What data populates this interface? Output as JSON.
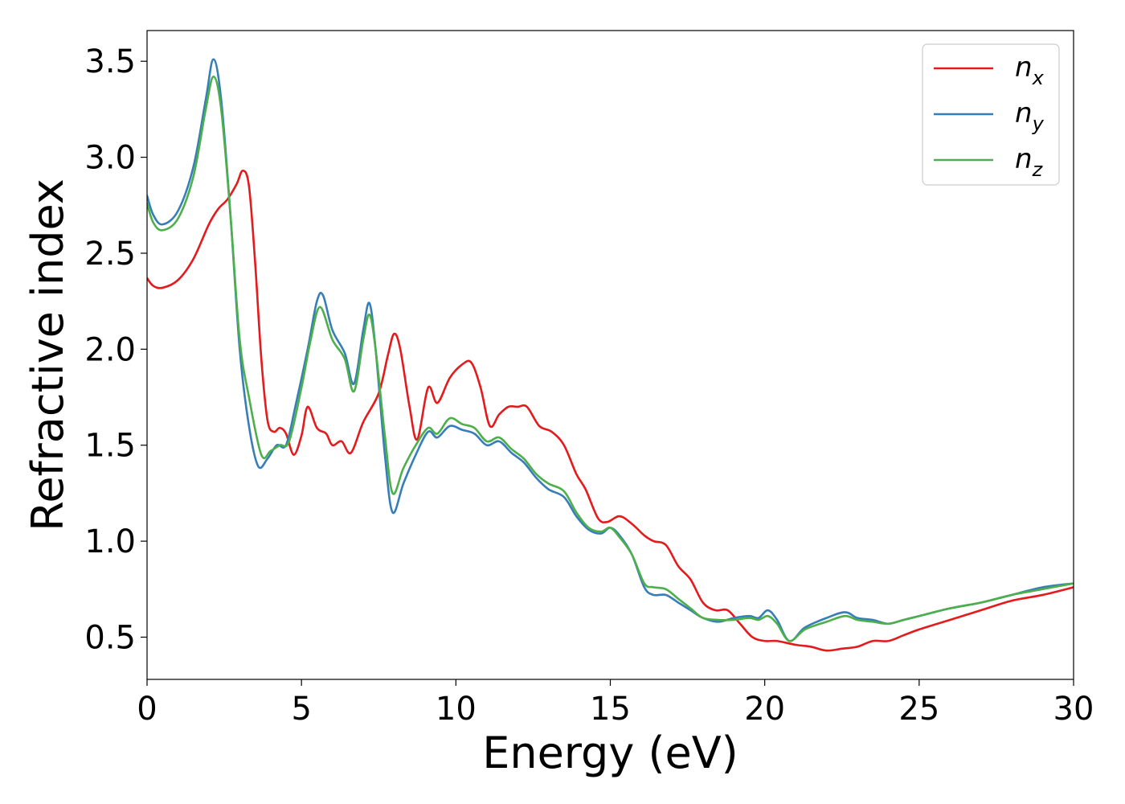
{
  "chart_data": {
    "type": "line",
    "xlabel": "Energy (eV)",
    "ylabel": "Refractive index",
    "xlim": [
      0,
      30
    ],
    "ylim": [
      0.28,
      3.66
    ],
    "xticks": [
      0,
      5,
      10,
      15,
      20,
      25,
      30
    ],
    "yticks": [
      0.5,
      1.0,
      1.5,
      2.0,
      2.5,
      3.0,
      3.5
    ],
    "xtick_labels": [
      "0",
      "5",
      "10",
      "15",
      "20",
      "25",
      "30"
    ],
    "ytick_labels": [
      "0.5",
      "1.0",
      "1.5",
      "2.0",
      "2.5",
      "3.0",
      "3.5"
    ],
    "grid": false,
    "legend_position": "top-right",
    "series": [
      {
        "name": "n_x",
        "legend_base": "n",
        "legend_sub": "x",
        "color": "#e41a1c",
        "points": [
          [
            0,
            2.37
          ],
          [
            0.2,
            2.33
          ],
          [
            0.5,
            2.32
          ],
          [
            1.0,
            2.36
          ],
          [
            1.5,
            2.47
          ],
          [
            2.0,
            2.65
          ],
          [
            2.3,
            2.73
          ],
          [
            2.6,
            2.78
          ],
          [
            2.9,
            2.86
          ],
          [
            3.1,
            2.93
          ],
          [
            3.3,
            2.85
          ],
          [
            3.5,
            2.45
          ],
          [
            3.7,
            1.95
          ],
          [
            3.9,
            1.63
          ],
          [
            4.1,
            1.57
          ],
          [
            4.3,
            1.59
          ],
          [
            4.5,
            1.56
          ],
          [
            4.75,
            1.45
          ],
          [
            5.0,
            1.55
          ],
          [
            5.2,
            1.7
          ],
          [
            5.5,
            1.59
          ],
          [
            5.8,
            1.56
          ],
          [
            6.0,
            1.5
          ],
          [
            6.3,
            1.52
          ],
          [
            6.6,
            1.46
          ],
          [
            7.0,
            1.62
          ],
          [
            7.5,
            1.77
          ],
          [
            7.8,
            1.97
          ],
          [
            8.0,
            2.08
          ],
          [
            8.2,
            2.0
          ],
          [
            8.5,
            1.7
          ],
          [
            8.75,
            1.53
          ],
          [
            9.1,
            1.8
          ],
          [
            9.4,
            1.72
          ],
          [
            9.8,
            1.85
          ],
          [
            10.2,
            1.92
          ],
          [
            10.5,
            1.93
          ],
          [
            10.8,
            1.8
          ],
          [
            11.1,
            1.6
          ],
          [
            11.4,
            1.66
          ],
          [
            11.7,
            1.7
          ],
          [
            12.0,
            1.7
          ],
          [
            12.3,
            1.7
          ],
          [
            12.7,
            1.6
          ],
          [
            13.1,
            1.57
          ],
          [
            13.5,
            1.5
          ],
          [
            13.9,
            1.35
          ],
          [
            14.2,
            1.27
          ],
          [
            14.6,
            1.12
          ],
          [
            14.9,
            1.1
          ],
          [
            15.3,
            1.13
          ],
          [
            15.7,
            1.09
          ],
          [
            16.1,
            1.03
          ],
          [
            16.4,
            1.0
          ],
          [
            16.8,
            0.98
          ],
          [
            17.2,
            0.87
          ],
          [
            17.6,
            0.8
          ],
          [
            18.0,
            0.68
          ],
          [
            18.4,
            0.64
          ],
          [
            18.8,
            0.64
          ],
          [
            19.2,
            0.57
          ],
          [
            19.6,
            0.5
          ],
          [
            20.0,
            0.48
          ],
          [
            20.4,
            0.48
          ],
          [
            21.0,
            0.46
          ],
          [
            21.5,
            0.45
          ],
          [
            22.0,
            0.43
          ],
          [
            22.5,
            0.44
          ],
          [
            23.0,
            0.45
          ],
          [
            23.5,
            0.48
          ],
          [
            24.0,
            0.48
          ],
          [
            24.5,
            0.51
          ],
          [
            25.0,
            0.54
          ],
          [
            26.0,
            0.59
          ],
          [
            27.0,
            0.64
          ],
          [
            28.0,
            0.69
          ],
          [
            29.0,
            0.72
          ],
          [
            30.0,
            0.76
          ]
        ]
      },
      {
        "name": "n_y",
        "legend_base": "n",
        "legend_sub": "y",
        "color": "#377eb8",
        "points": [
          [
            0,
            2.8
          ],
          [
            0.2,
            2.7
          ],
          [
            0.5,
            2.65
          ],
          [
            1.0,
            2.72
          ],
          [
            1.5,
            2.95
          ],
          [
            1.9,
            3.3
          ],
          [
            2.15,
            3.51
          ],
          [
            2.4,
            3.3
          ],
          [
            2.7,
            2.7
          ],
          [
            3.0,
            2.0
          ],
          [
            3.3,
            1.6
          ],
          [
            3.6,
            1.39
          ],
          [
            3.9,
            1.43
          ],
          [
            4.2,
            1.5
          ],
          [
            4.5,
            1.5
          ],
          [
            4.8,
            1.7
          ],
          [
            5.2,
            2.0
          ],
          [
            5.5,
            2.25
          ],
          [
            5.7,
            2.28
          ],
          [
            6.0,
            2.1
          ],
          [
            6.4,
            1.98
          ],
          [
            6.7,
            1.82
          ],
          [
            7.0,
            2.1
          ],
          [
            7.2,
            2.24
          ],
          [
            7.4,
            2.0
          ],
          [
            7.7,
            1.45
          ],
          [
            7.95,
            1.15
          ],
          [
            8.3,
            1.3
          ],
          [
            8.7,
            1.45
          ],
          [
            9.1,
            1.57
          ],
          [
            9.4,
            1.54
          ],
          [
            9.8,
            1.6
          ],
          [
            10.2,
            1.58
          ],
          [
            10.6,
            1.56
          ],
          [
            11.0,
            1.5
          ],
          [
            11.4,
            1.52
          ],
          [
            11.8,
            1.46
          ],
          [
            12.2,
            1.41
          ],
          [
            12.6,
            1.33
          ],
          [
            13.0,
            1.27
          ],
          [
            13.5,
            1.23
          ],
          [
            13.9,
            1.13
          ],
          [
            14.3,
            1.06
          ],
          [
            14.7,
            1.04
          ],
          [
            15.0,
            1.07
          ],
          [
            15.3,
            1.03
          ],
          [
            15.7,
            0.93
          ],
          [
            16.1,
            0.76
          ],
          [
            16.4,
            0.72
          ],
          [
            16.8,
            0.72
          ],
          [
            17.2,
            0.68
          ],
          [
            17.6,
            0.64
          ],
          [
            18.0,
            0.6
          ],
          [
            18.5,
            0.58
          ],
          [
            19.0,
            0.6
          ],
          [
            19.5,
            0.61
          ],
          [
            19.8,
            0.6
          ],
          [
            20.1,
            0.64
          ],
          [
            20.4,
            0.59
          ],
          [
            20.8,
            0.48
          ],
          [
            21.3,
            0.55
          ],
          [
            22.0,
            0.6
          ],
          [
            22.6,
            0.63
          ],
          [
            23.0,
            0.6
          ],
          [
            23.5,
            0.59
          ],
          [
            24.0,
            0.57
          ],
          [
            24.5,
            0.59
          ],
          [
            25.0,
            0.61
          ],
          [
            26.0,
            0.65
          ],
          [
            27.0,
            0.68
          ],
          [
            28.0,
            0.72
          ],
          [
            29.0,
            0.76
          ],
          [
            30.0,
            0.78
          ]
        ]
      },
      {
        "name": "n_z",
        "legend_base": "n",
        "legend_sub": "z",
        "color": "#4daf4a",
        "points": [
          [
            0,
            2.76
          ],
          [
            0.2,
            2.66
          ],
          [
            0.5,
            2.62
          ],
          [
            1.0,
            2.68
          ],
          [
            1.5,
            2.9
          ],
          [
            1.9,
            3.25
          ],
          [
            2.15,
            3.42
          ],
          [
            2.4,
            3.25
          ],
          [
            2.7,
            2.7
          ],
          [
            3.0,
            2.05
          ],
          [
            3.3,
            1.75
          ],
          [
            3.7,
            1.45
          ],
          [
            4.0,
            1.47
          ],
          [
            4.3,
            1.5
          ],
          [
            4.6,
            1.52
          ],
          [
            5.0,
            1.8
          ],
          [
            5.3,
            2.05
          ],
          [
            5.6,
            2.22
          ],
          [
            6.0,
            2.05
          ],
          [
            6.4,
            1.95
          ],
          [
            6.7,
            1.78
          ],
          [
            7.0,
            2.05
          ],
          [
            7.2,
            2.18
          ],
          [
            7.4,
            2.0
          ],
          [
            7.7,
            1.55
          ],
          [
            7.95,
            1.25
          ],
          [
            8.3,
            1.38
          ],
          [
            8.7,
            1.5
          ],
          [
            9.1,
            1.59
          ],
          [
            9.4,
            1.56
          ],
          [
            9.8,
            1.64
          ],
          [
            10.2,
            1.61
          ],
          [
            10.6,
            1.59
          ],
          [
            11.0,
            1.52
          ],
          [
            11.4,
            1.54
          ],
          [
            11.8,
            1.48
          ],
          [
            12.2,
            1.43
          ],
          [
            12.6,
            1.35
          ],
          [
            13.0,
            1.3
          ],
          [
            13.5,
            1.26
          ],
          [
            13.9,
            1.15
          ],
          [
            14.3,
            1.07
          ],
          [
            14.7,
            1.05
          ],
          [
            15.0,
            1.07
          ],
          [
            15.3,
            1.02
          ],
          [
            15.7,
            0.93
          ],
          [
            16.1,
            0.78
          ],
          [
            16.4,
            0.76
          ],
          [
            16.8,
            0.75
          ],
          [
            17.2,
            0.7
          ],
          [
            17.6,
            0.65
          ],
          [
            18.0,
            0.6
          ],
          [
            18.5,
            0.59
          ],
          [
            19.0,
            0.59
          ],
          [
            19.5,
            0.6
          ],
          [
            19.8,
            0.59
          ],
          [
            20.1,
            0.61
          ],
          [
            20.4,
            0.57
          ],
          [
            20.8,
            0.48
          ],
          [
            21.3,
            0.54
          ],
          [
            22.0,
            0.58
          ],
          [
            22.6,
            0.61
          ],
          [
            23.0,
            0.59
          ],
          [
            23.5,
            0.58
          ],
          [
            24.0,
            0.57
          ],
          [
            24.5,
            0.59
          ],
          [
            25.0,
            0.61
          ],
          [
            26.0,
            0.65
          ],
          [
            27.0,
            0.68
          ],
          [
            28.0,
            0.72
          ],
          [
            29.0,
            0.75
          ],
          [
            30.0,
            0.78
          ]
        ]
      }
    ]
  }
}
